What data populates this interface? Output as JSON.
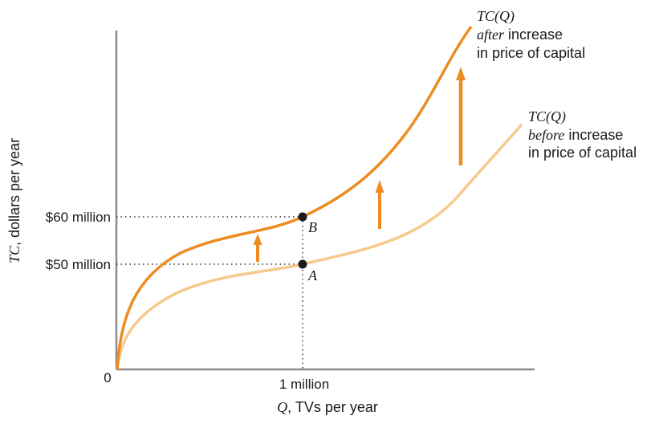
{
  "chart_data": {
    "type": "line",
    "x_unit_label": "1 million",
    "y_tick_labels": [
      "$60 million",
      "$50 million"
    ],
    "y_tick_values": [
      60,
      50
    ],
    "origin_label": "0",
    "xlabel": {
      "var": "Q",
      "rest": ", TVs per year"
    },
    "ylabel": {
      "var": "TC",
      "rest": ", dollars per year"
    },
    "series": [
      {
        "name_fn": "TC(Q)",
        "name_italic": "after",
        "name_rest": " increase",
        "name_line2": "in price of capital",
        "color": "#ee8c22",
        "points": [
          [
            0,
            0
          ],
          [
            1,
            60
          ]
        ]
      },
      {
        "name_fn": "TC(Q)",
        "name_italic": "before",
        "name_rest": " increase",
        "name_line2": "in price of capital",
        "color": "#f7c98e",
        "points": [
          [
            0,
            0
          ],
          [
            1,
            50
          ]
        ]
      }
    ],
    "points": [
      {
        "label": "B",
        "x": 1,
        "y": 60
      },
      {
        "label": "A",
        "x": 1,
        "y": 50
      }
    ],
    "arrow_color": "#ee8c22",
    "grid": false
  }
}
